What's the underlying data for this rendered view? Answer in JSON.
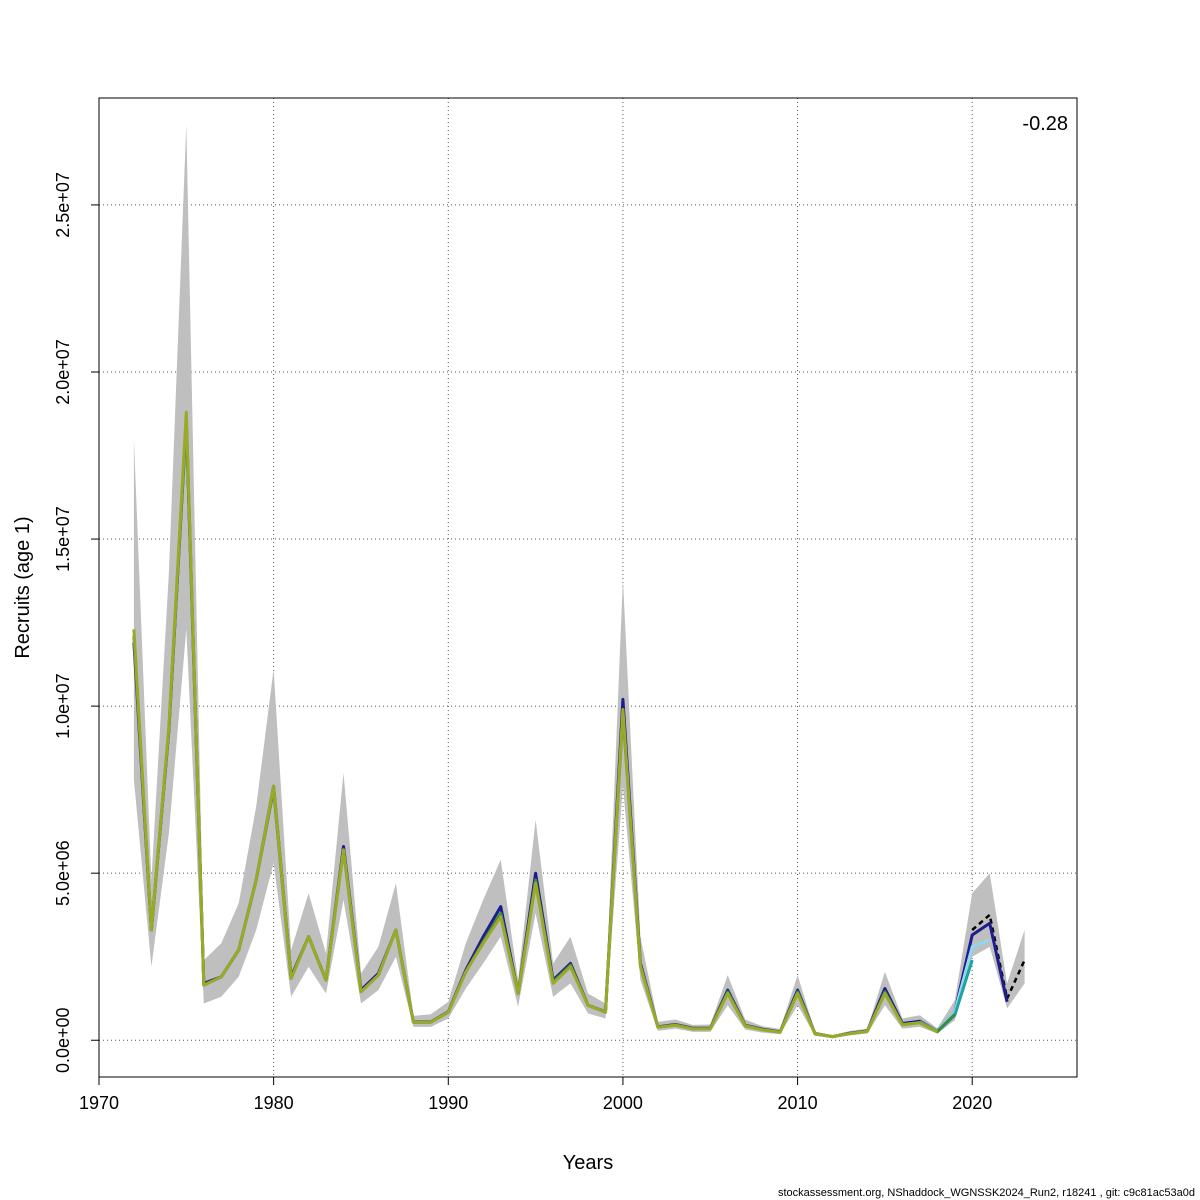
{
  "chart_data": {
    "type": "line",
    "title": "",
    "xlabel": "Years",
    "ylabel": "Recruits (age 1)",
    "xlim": [
      1970,
      2026
    ],
    "ylim": [
      -1100000,
      28200000
    ],
    "x_ticks": [
      1970,
      1980,
      1990,
      2000,
      2010,
      2020
    ],
    "y_ticks": [
      {
        "value": 0,
        "label": "0.0e+00"
      },
      {
        "value": 5000000,
        "label": "5.0e+06"
      },
      {
        "value": 10000000,
        "label": "1.0e+07"
      },
      {
        "value": 15000000,
        "label": "1.5e+07"
      },
      {
        "value": 20000000,
        "label": "2.0e+07"
      },
      {
        "value": 25000000,
        "label": "2.5e+07"
      }
    ],
    "grid": true,
    "annotation": "-0.28",
    "footer": "stockassessment.org, NShaddock_WGNSSK2024_Run2, r18241 , git: c9c81ac53a0d",
    "band": {
      "x": [
        1972,
        1973,
        1974,
        1975,
        1976,
        1977,
        1978,
        1979,
        1980,
        1981,
        1982,
        1983,
        1984,
        1985,
        1986,
        1987,
        1988,
        1989,
        1990,
        1991,
        1992,
        1993,
        1994,
        1995,
        1996,
        1997,
        1998,
        1999,
        2000,
        2001,
        2002,
        2003,
        2004,
        2005,
        2006,
        2007,
        2008,
        2009,
        2010,
        2011,
        2012,
        2013,
        2014,
        2015,
        2016,
        2017,
        2018,
        2019,
        2020,
        2021,
        2022,
        2023
      ],
      "lower": [
        7800000,
        2200000,
        6200000,
        12300000,
        1100000,
        1300000,
        1900000,
        3300000,
        5300000,
        1300000,
        2200000,
        1400000,
        4200000,
        1100000,
        1500000,
        2500000,
        400000,
        400000,
        650000,
        1550000,
        2300000,
        3100000,
        1000000,
        3800000,
        1300000,
        1700000,
        800000,
        650000,
        7600000,
        1800000,
        280000,
        350000,
        250000,
        250000,
        1050000,
        320000,
        230000,
        180000,
        1050000,
        130000,
        80000,
        150000,
        200000,
        1050000,
        350000,
        400000,
        200000,
        600000,
        2500000,
        2800000,
        950000,
        1700000
      ],
      "upper": [
        18000000,
        4800000,
        14000000,
        27400000,
        2400000,
        2900000,
        4100000,
        7000000,
        11100000,
        2700000,
        4400000,
        2600000,
        8000000,
        2000000,
        2800000,
        4700000,
        730000,
        780000,
        1150000,
        2900000,
        4200000,
        5400000,
        1800000,
        6600000,
        2300000,
        3100000,
        1400000,
        1100000,
        13800000,
        3100000,
        550000,
        620000,
        460000,
        470000,
        1950000,
        620000,
        420000,
        340000,
        1950000,
        260000,
        150000,
        280000,
        350000,
        2050000,
        650000,
        750000,
        360000,
        1200000,
        4400000,
        5000000,
        1700000,
        3300000
      ]
    },
    "series": [
      {
        "color": "#000000",
        "dashed": true,
        "x": [
          2020,
          2021,
          2022,
          2023
        ],
        "values": [
          3300000,
          3750000,
          1250000,
          2400000
        ]
      },
      {
        "color": "#1f1d8c",
        "dashed": false,
        "x": [
          1972,
          1973,
          1974,
          1975,
          1976,
          1977,
          1978,
          1979,
          1980,
          1981,
          1982,
          1983,
          1984,
          1985,
          1986,
          1987,
          1988,
          1989,
          1990,
          1991,
          1992,
          1993,
          1994,
          1995,
          1996,
          1997,
          1998,
          1999,
          2000,
          2001,
          2002,
          2003,
          2004,
          2005,
          2006,
          2007,
          2008,
          2009,
          2010,
          2011,
          2012,
          2013,
          2014,
          2015,
          2016,
          2017,
          2018,
          2019,
          2020,
          2021,
          2022
        ],
        "values": [
          11900000,
          3300000,
          9300000,
          18600000,
          1700000,
          1900000,
          2700000,
          4800000,
          7600000,
          1900000,
          3100000,
          1800000,
          5800000,
          1500000,
          2000000,
          3300000,
          550000,
          550000,
          850000,
          2100000,
          3100000,
          4000000,
          1400000,
          5000000,
          1800000,
          2300000,
          1050000,
          850000,
          10200000,
          2300000,
          400000,
          470000,
          360000,
          360000,
          1500000,
          450000,
          330000,
          250000,
          1500000,
          200000,
          110000,
          210000,
          280000,
          1550000,
          500000,
          570000,
          280000,
          850000,
          3150000,
          3500000,
          1150000
        ]
      },
      {
        "color": "#8fd8ef",
        "dashed": false,
        "x": [
          2017,
          2018,
          2019,
          2020,
          2021
        ],
        "values": [
          550000,
          280000,
          850000,
          2800000,
          3000000
        ]
      },
      {
        "color": "#20a39e",
        "dashed": false,
        "x": [
          2016,
          2017,
          2018,
          2019,
          2020
        ],
        "values": [
          470000,
          530000,
          260000,
          750000,
          2400000
        ]
      },
      {
        "color": "#3c8a44",
        "dashed": false,
        "x": [
          1972,
          1973,
          1974,
          1975,
          1976,
          1977,
          1978,
          1979,
          1980,
          1981,
          1982,
          1983,
          1984,
          1985,
          1986,
          1987,
          1988,
          1989,
          1990,
          1991,
          1992,
          1993,
          1994,
          1995,
          1996,
          1997,
          1998,
          1999,
          2000,
          2001,
          2002,
          2003,
          2004,
          2005,
          2006,
          2007,
          2008,
          2009,
          2010,
          2011,
          2012,
          2013,
          2014,
          2015,
          2016,
          2017,
          2018,
          2019
        ],
        "values": [
          12100000,
          3300000,
          9300000,
          18500000,
          1650000,
          1900000,
          2700000,
          4800000,
          7500000,
          1850000,
          3100000,
          1800000,
          5700000,
          1450000,
          1950000,
          3300000,
          540000,
          540000,
          840000,
          2050000,
          2950000,
          3800000,
          1400000,
          4800000,
          1750000,
          2250000,
          1050000,
          840000,
          9800000,
          2250000,
          390000,
          460000,
          350000,
          350000,
          1450000,
          440000,
          320000,
          240000,
          1450000,
          190000,
          110000,
          200000,
          270000,
          1450000,
          470000,
          530000,
          260000,
          780000
        ]
      },
      {
        "color": "#9aaa26",
        "dashed": false,
        "x": [
          1972,
          1973,
          1974,
          1975,
          1976,
          1977,
          1978,
          1979,
          1980,
          1981,
          1982,
          1983,
          1984,
          1985,
          1986,
          1987,
          1988,
          1989,
          1990,
          1991,
          1992,
          1993,
          1994,
          1995,
          1996,
          1997,
          1998,
          1999,
          2000,
          2001,
          2002,
          2003,
          2004,
          2005,
          2006,
          2007,
          2008,
          2009,
          2010,
          2011,
          2012,
          2013,
          2014,
          2015,
          2016,
          2017,
          2018
        ],
        "values": [
          12300000,
          3300000,
          9400000,
          18800000,
          1650000,
          1900000,
          2700000,
          4800000,
          7600000,
          1850000,
          3100000,
          1800000,
          5700000,
          1450000,
          1950000,
          3300000,
          540000,
          540000,
          840000,
          2050000,
          2900000,
          3700000,
          1400000,
          4700000,
          1700000,
          2200000,
          1050000,
          840000,
          9900000,
          2200000,
          390000,
          450000,
          340000,
          340000,
          1400000,
          430000,
          310000,
          240000,
          1400000,
          190000,
          110000,
          200000,
          270000,
          1400000,
          460000,
          520000,
          250000
        ]
      }
    ]
  }
}
